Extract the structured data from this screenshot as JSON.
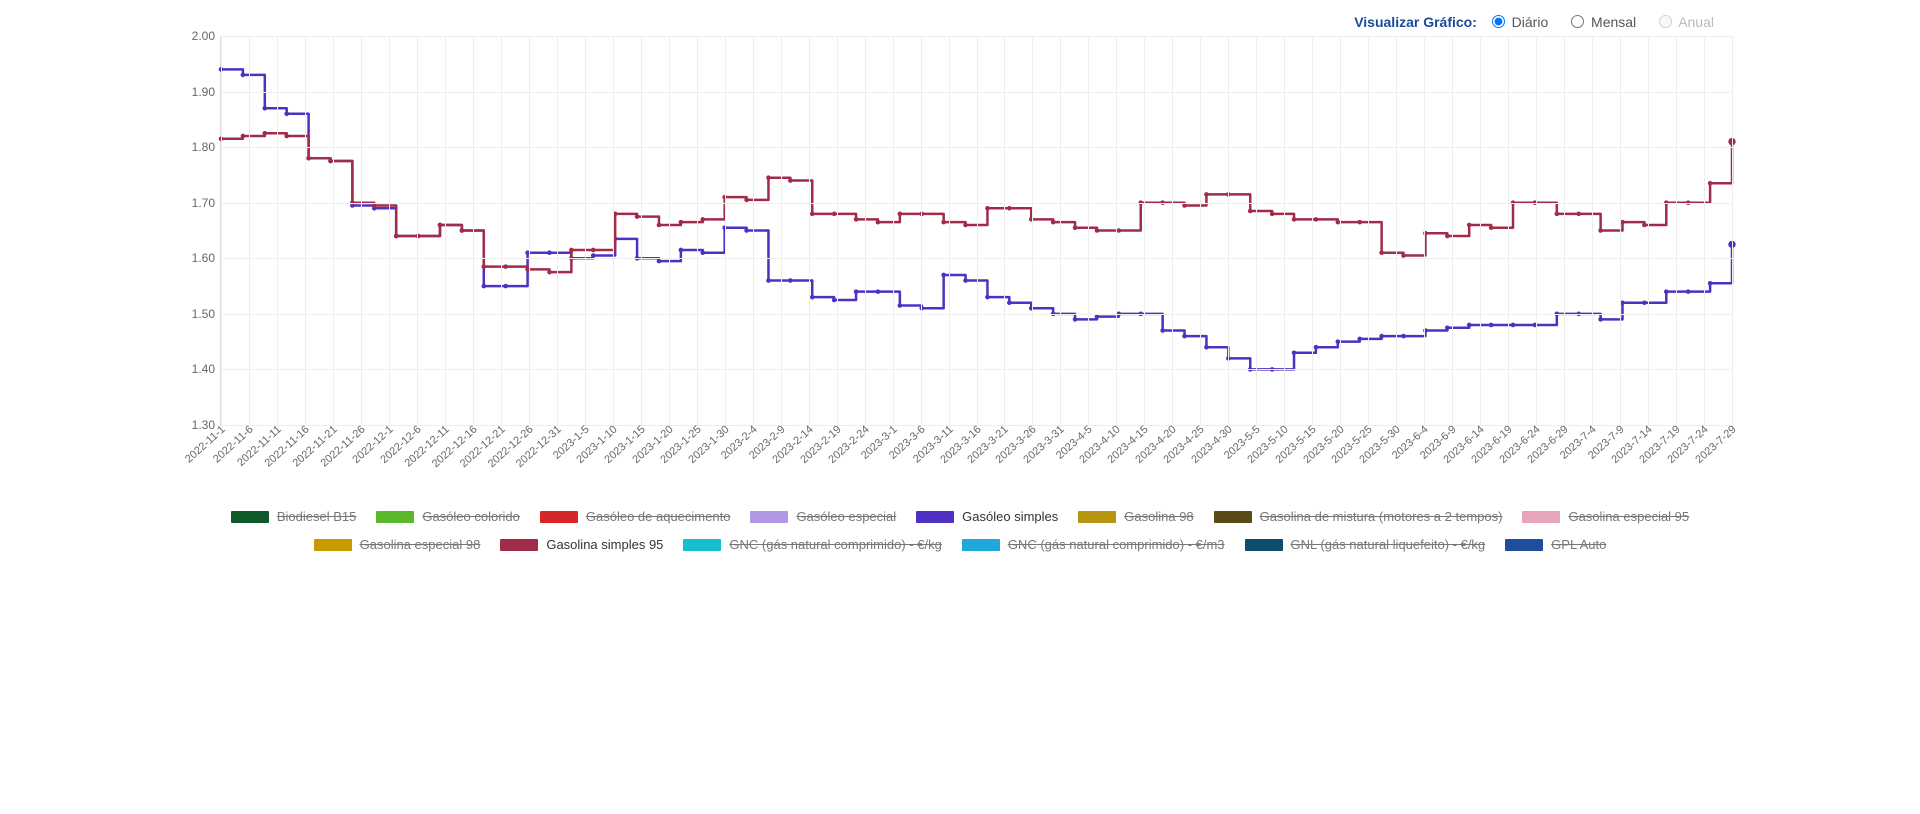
{
  "controls": {
    "title": "Visualizar Gráfico:",
    "options": [
      {
        "id": "diario",
        "label": "Diário",
        "checked": true,
        "disabled": false
      },
      {
        "id": "mensal",
        "label": "Mensal",
        "checked": false,
        "disabled": false
      },
      {
        "id": "anual",
        "label": "Anual",
        "checked": false,
        "disabled": true
      }
    ]
  },
  "chart": {
    "type": "line",
    "background_color": "#ffffff",
    "grid_color": "#eeeeee",
    "axis_color": "#dddddd",
    "text_color": "#666666",
    "y": {
      "min": 1.3,
      "max": 2.0,
      "step": 0.1
    },
    "x_labels": [
      "2022-11-1",
      "2022-11-6",
      "2022-11-11",
      "2022-11-16",
      "2022-11-21",
      "2022-11-26",
      "2022-12-1",
      "2022-12-6",
      "2022-12-11",
      "2022-12-16",
      "2022-12-21",
      "2022-12-26",
      "2022-12-31",
      "2023-1-5",
      "2023-1-10",
      "2023-1-15",
      "2023-1-20",
      "2023-1-25",
      "2023-1-30",
      "2023-2-4",
      "2023-2-9",
      "2023-2-14",
      "2023-2-19",
      "2023-2-24",
      "2023-3-1",
      "2023-3-6",
      "2023-3-11",
      "2023-3-16",
      "2023-3-21",
      "2023-3-26",
      "2023-3-31",
      "2023-4-5",
      "2023-4-10",
      "2023-4-15",
      "2023-4-20",
      "2023-4-25",
      "2023-4-30",
      "2023-5-5",
      "2023-5-10",
      "2023-5-15",
      "2023-5-20",
      "2023-5-25",
      "2023-5-30",
      "2023-6-4",
      "2023-6-9",
      "2023-6-14",
      "2023-6-19",
      "2023-6-24",
      "2023-6-29",
      "2023-7-4",
      "2023-7-9",
      "2023-7-14",
      "2023-7-19",
      "2023-7-24",
      "2023-7-29"
    ],
    "series": [
      {
        "key": "biodiesel",
        "label": "Biodiesel B15",
        "color": "#0f5a2a",
        "active": false
      },
      {
        "key": "gasoleo_colorido",
        "label": "Gasóleo colorido",
        "color": "#5ab92b",
        "active": false
      },
      {
        "key": "gasoleo_aquec",
        "label": "Gasóleo de aquecimento",
        "color": "#d62728",
        "active": false
      },
      {
        "key": "gasoleo_especial",
        "label": "Gasóleo especial",
        "color": "#b197e6",
        "active": false
      },
      {
        "key": "gasoleo_simples",
        "label": "Gasóleo simples",
        "color": "#5030c0",
        "active": true,
        "values": [
          1.94,
          1.93,
          1.87,
          1.86,
          1.78,
          1.775,
          1.695,
          1.69,
          1.64,
          1.64,
          1.66,
          1.65,
          1.55,
          1.55,
          1.61,
          1.61,
          1.6,
          1.605,
          1.635,
          1.6,
          1.595,
          1.615,
          1.61,
          1.655,
          1.65,
          1.56,
          1.56,
          1.53,
          1.525,
          1.54,
          1.54,
          1.515,
          1.51,
          1.57,
          1.56,
          1.53,
          1.52,
          1.51,
          1.5,
          1.49,
          1.495,
          1.5,
          1.5,
          1.47,
          1.46,
          1.44,
          1.42,
          1.4,
          1.4,
          1.43,
          1.44,
          1.45,
          1.455,
          1.46,
          1.46,
          1.47,
          1.475,
          1.48,
          1.48,
          1.48,
          1.48,
          1.5,
          1.5,
          1.49,
          1.52,
          1.52,
          1.54,
          1.54,
          1.555,
          1.625
        ]
      },
      {
        "key": "gasolina98",
        "label": "Gasolina 98",
        "color": "#b59410",
        "active": false
      },
      {
        "key": "gas_mistura",
        "label": "Gasolina de mistura (motores a 2 tempos)",
        "color": "#5a4a1a",
        "active": false
      },
      {
        "key": "gas_esp95",
        "label": "Gasolina especial 95",
        "color": "#e6a5b8",
        "active": false
      },
      {
        "key": "gas_esp98",
        "label": "Gasolina especial 98",
        "color": "#c99a00",
        "active": false
      },
      {
        "key": "gas_simples95",
        "label": "Gasolina simples 95",
        "color": "#a02c4a",
        "active": true,
        "values": [
          1.815,
          1.82,
          1.825,
          1.82,
          1.78,
          1.775,
          1.7,
          1.695,
          1.64,
          1.64,
          1.66,
          1.65,
          1.585,
          1.585,
          1.58,
          1.575,
          1.615,
          1.615,
          1.68,
          1.675,
          1.66,
          1.665,
          1.67,
          1.71,
          1.705,
          1.745,
          1.74,
          1.68,
          1.68,
          1.67,
          1.665,
          1.68,
          1.68,
          1.665,
          1.66,
          1.69,
          1.69,
          1.67,
          1.665,
          1.655,
          1.65,
          1.65,
          1.7,
          1.7,
          1.695,
          1.715,
          1.715,
          1.685,
          1.68,
          1.67,
          1.67,
          1.665,
          1.665,
          1.61,
          1.605,
          1.645,
          1.64,
          1.66,
          1.655,
          1.7,
          1.7,
          1.68,
          1.68,
          1.65,
          1.665,
          1.66,
          1.7,
          1.7,
          1.735,
          1.81
        ]
      },
      {
        "key": "gnc_kg",
        "label": "GNC (gás natural comprimido) - €/kg",
        "color": "#17becf",
        "active": false
      },
      {
        "key": "gnc_m3",
        "label": "GNC (gás natural comprimido) - €/m3",
        "color": "#1fa8d9",
        "active": false
      },
      {
        "key": "gnl_kg",
        "label": "GNL (gás natural liquefeito) - €/kg",
        "color": "#0b4f6c",
        "active": false
      },
      {
        "key": "gpl_auto",
        "label": "GPL Auto",
        "color": "#1f4e9c",
        "active": false
      }
    ],
    "line_width": 2.5,
    "marker_radius": 2.3
  }
}
